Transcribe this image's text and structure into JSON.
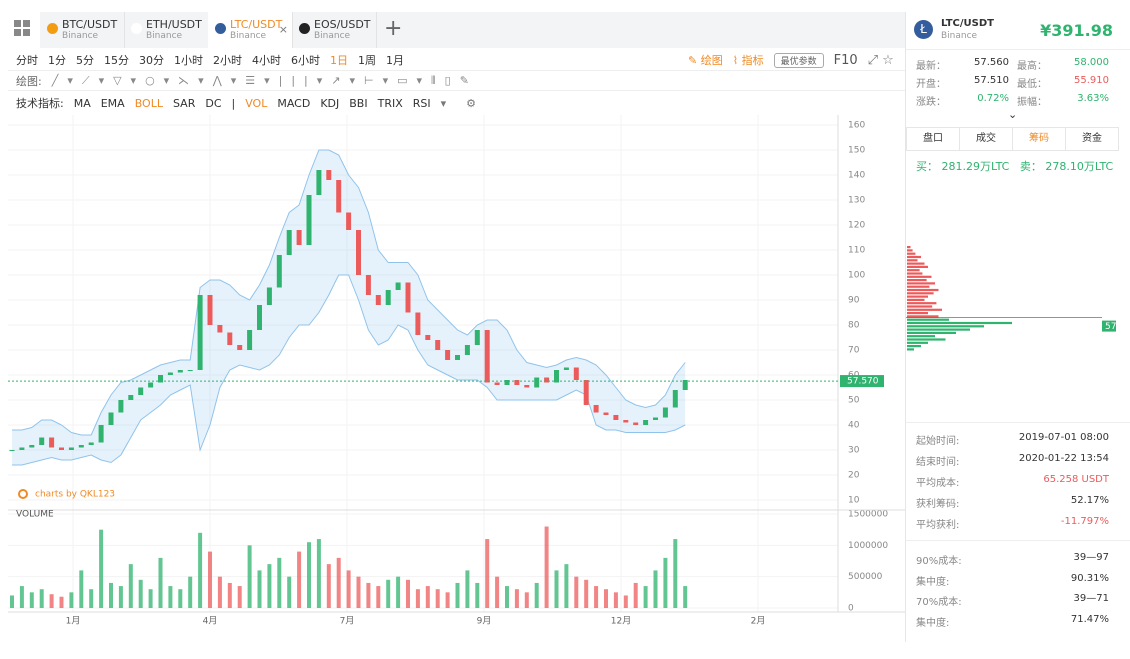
{
  "tabs": [
    {
      "symbol": "BTC/USDT",
      "exchange": "Binance"
    },
    {
      "symbol": "ETH/USDT",
      "exchange": "Binance"
    },
    {
      "symbol": "LTC/USDT",
      "exchange": "Binance"
    },
    {
      "symbol": "EOS/USDT",
      "exchange": "Binance"
    }
  ],
  "toolbar": {
    "periods": [
      "分时",
      "1分",
      "5分",
      "15分",
      "30分",
      "1小时",
      "2小时",
      "4小时",
      "6小时",
      "1日",
      "1周",
      "1月"
    ],
    "draw": "绘图",
    "indicator": "指标",
    "optimal": "最优参数",
    "f10": "F10"
  },
  "draw_tools": {
    "label": "绘图:"
  },
  "indicators": {
    "label": "技术指标:",
    "main": [
      "MA",
      "EMA",
      "BOLL",
      "SAR",
      "DC"
    ],
    "separator": "|",
    "sub": [
      "VOL",
      "MACD",
      "KDJ",
      "BBI",
      "TRIX",
      "RSI"
    ]
  },
  "chart_data": {
    "type": "candlestick",
    "watermark": "charts by QKL123",
    "close": [
      30,
      31,
      32,
      35,
      31,
      30,
      31,
      32,
      33,
      40,
      45,
      50,
      52,
      55,
      57,
      60,
      61,
      62,
      62,
      92,
      80,
      77,
      72,
      70,
      78,
      88,
      95,
      108,
      118,
      112,
      132,
      142,
      138,
      125,
      118,
      100,
      92,
      88,
      94,
      97,
      85,
      76,
      74,
      70,
      66,
      68,
      72,
      78,
      57,
      56,
      58,
      56,
      55,
      59,
      57,
      62,
      63,
      58,
      48,
      45,
      44,
      42,
      41,
      40,
      42,
      43,
      47,
      54,
      58
    ],
    "boll_upper": [
      38,
      38,
      39,
      42,
      42,
      40,
      37,
      36,
      36,
      45,
      52,
      57,
      58,
      60,
      62,
      64,
      65,
      66,
      66,
      95,
      98,
      98,
      96,
      92,
      90,
      96,
      104,
      115,
      125,
      128,
      140,
      150,
      150,
      148,
      140,
      135,
      125,
      110,
      105,
      105,
      105,
      100,
      90,
      86,
      82,
      78,
      76,
      80,
      82,
      82,
      78,
      70,
      65,
      64,
      63,
      64,
      66,
      67,
      66,
      64,
      60,
      55,
      50,
      48,
      47,
      48,
      52,
      60,
      65
    ],
    "boll_lower": [
      24,
      24,
      25,
      26,
      27,
      26,
      26,
      27,
      28,
      26,
      25,
      28,
      35,
      42,
      45,
      48,
      52,
      54,
      56,
      30,
      40,
      55,
      62,
      64,
      63,
      62,
      64,
      68,
      75,
      80,
      80,
      85,
      92,
      100,
      100,
      90,
      78,
      72,
      74,
      80,
      78,
      70,
      64,
      62,
      60,
      58,
      58,
      58,
      55,
      50,
      50,
      50,
      50,
      50,
      50,
      50,
      52,
      54,
      52,
      40,
      38,
      38,
      37,
      37,
      37,
      37,
      37,
      38,
      40
    ],
    "ylim": [
      6,
      164
    ],
    "yticks": [
      10,
      20,
      30,
      40,
      50,
      60,
      70,
      80,
      90,
      100,
      110,
      120,
      130,
      140,
      150,
      160
    ],
    "last_price": {
      "value": 57.57,
      "label": "57.570"
    },
    "x_labels": [
      "1月",
      "4月",
      "7月",
      "9月",
      "12月",
      "2月"
    ],
    "up_color": "#2fb36e",
    "down_color": "#ec5b5b",
    "band_color": "#8fc3ec",
    "volume": {
      "title": "VOLUME",
      "values": [
        200000,
        350000,
        250000,
        300000,
        220000,
        180000,
        250000,
        600000,
        300000,
        1250000,
        400000,
        350000,
        700000,
        450000,
        300000,
        800000,
        350000,
        300000,
        500000,
        1200000,
        900000,
        500000,
        400000,
        350000,
        1000000,
        600000,
        700000,
        800000,
        500000,
        900000,
        1050000,
        1100000,
        700000,
        800000,
        600000,
        500000,
        400000,
        350000,
        450000,
        500000,
        450000,
        300000,
        350000,
        300000,
        250000,
        400000,
        600000,
        400000,
        1100000,
        500000,
        350000,
        300000,
        250000,
        400000,
        1300000,
        600000,
        700000,
        500000,
        450000,
        350000,
        300000,
        250000,
        200000,
        400000,
        350000,
        600000,
        800000,
        1100000,
        350000
      ],
      "ylim": [
        0,
        1500000
      ],
      "yticks": [
        0,
        500000,
        1000000,
        1500000
      ]
    }
  },
  "panel": {
    "symbol": "LTC/USDT",
    "exchange": "Binance",
    "price": "¥391.98",
    "stats": [
      [
        "最新：",
        "57.560",
        "最高：",
        "58.000"
      ],
      [
        "开盘：",
        "57.510",
        "最低：",
        "55.910"
      ],
      [
        "涨跌：",
        "0.72%",
        "振幅：",
        "3.63%"
      ]
    ],
    "tabs": [
      "盘口",
      "成交",
      "筹码",
      "资金"
    ],
    "buy_label": "买：",
    "buy": "281.29万LTC",
    "sell_label": "卖：",
    "sell": "278.10万LTC",
    "chips": {
      "series": [
        {
          "color": "#ec5b5b",
          "values": [
            5,
            8,
            12,
            20,
            15,
            25,
            30,
            18,
            22,
            35,
            28,
            40,
            32,
            45,
            38,
            30,
            25,
            42,
            36,
            50,
            30,
            45
          ]
        },
        {
          "color": "#2fb36e",
          "values": [
            60,
            150,
            110,
            90,
            70,
            40,
            55,
            30,
            20,
            10
          ]
        }
      ],
      "marker": "57"
    },
    "info": [
      [
        "起始时间:",
        "2019-07-01 08:00"
      ],
      [
        "结束时间:",
        "2020-01-22 13:54"
      ],
      [
        "平均成本:",
        "65.258 USDT"
      ],
      [
        "获利筹码:",
        "52.17%"
      ],
      [
        "平均获利:",
        "-11.797%"
      ]
    ],
    "cost": [
      [
        "90%成本:",
        "39—97"
      ],
      [
        "集中度:",
        "90.31%"
      ],
      [
        "70%成本:",
        "39—71"
      ],
      [
        "集中度:",
        "71.47%"
      ]
    ]
  }
}
